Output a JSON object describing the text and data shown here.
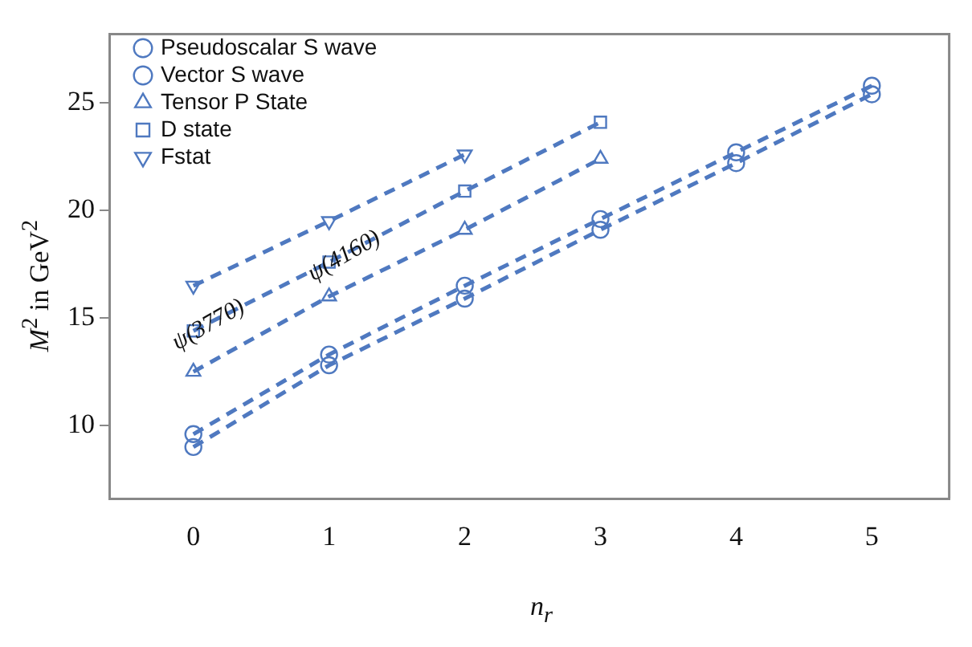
{
  "chart_data": {
    "type": "line",
    "xlabel": "n$_{r}$",
    "ylabel": "M$^{2}$ in GeV$^{2}$",
    "xlim": [
      -0.62,
      5.57
    ],
    "xticks": [
      0,
      1,
      2,
      3,
      4,
      5
    ],
    "ylim": [
      6.6,
      28.2
    ],
    "yticks": [
      10,
      15,
      20,
      25
    ],
    "grid": false,
    "legend": "top left",
    "line_style": "dashed",
    "series": [
      {
        "name": "Pseudoscalar S wave",
        "color": "#4f79c0",
        "marker": "circle",
        "x": [
          0,
          1,
          2,
          3,
          4,
          5
        ],
        "values": [
          9.6,
          13.3,
          16.5,
          19.6,
          22.7,
          25.8
        ]
      },
      {
        "name": "Vector S wave",
        "color": "#4f79c0",
        "marker": "circle",
        "x": [
          0,
          1,
          2,
          3,
          4,
          5
        ],
        "values": [
          9.0,
          12.8,
          15.9,
          19.1,
          22.2,
          25.4
        ]
      },
      {
        "name": "Tensor P State",
        "color": "#4f79c0",
        "marker": "triangle",
        "x": [
          0,
          1,
          2,
          3
        ],
        "values": [
          12.5,
          16.0,
          19.1,
          22.4
        ]
      },
      {
        "name": "D state",
        "color": "#4f79c0",
        "marker": "square",
        "x": [
          0,
          1,
          2,
          3
        ],
        "values": [
          14.4,
          17.6,
          20.9,
          24.1
        ]
      },
      {
        "name": "Fstat",
        "color": "#4f79c0",
        "marker": "triangle-down",
        "x": [
          0,
          1,
          2
        ],
        "values": [
          16.5,
          19.5,
          22.6
        ]
      }
    ],
    "annotations": [
      {
        "text": "ψ(3770)",
        "x": 0,
        "y": 14.4
      },
      {
        "text": "ψ(4160)",
        "x": 1,
        "y": 17.6
      }
    ]
  }
}
